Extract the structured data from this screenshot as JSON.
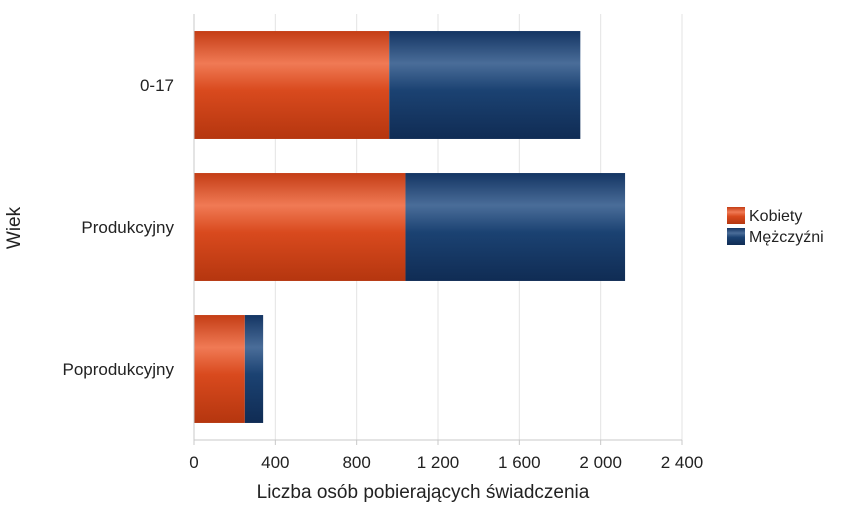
{
  "chart_data": {
    "type": "bar",
    "orientation": "horizontal",
    "stacked": true,
    "categories": [
      "0-17",
      "Produkcyjny",
      "Poprodukcyjny"
    ],
    "series": [
      {
        "name": "Kobiety",
        "values": [
          960,
          1040,
          250
        ],
        "color": "#d94a1e"
      },
      {
        "name": "Mężczyźni",
        "values": [
          940,
          1080,
          90
        ],
        "color": "#1b4272"
      }
    ],
    "xlabel": "Liczba osób pobierających świadczenia",
    "ylabel": "Wiek",
    "xlim": [
      0,
      2400
    ],
    "xticks": [
      0,
      400,
      800,
      1200,
      1600,
      2000,
      2400
    ],
    "xtick_labels": [
      "0",
      "400",
      "800",
      "1 200",
      "1 600",
      "2 000",
      "2 400"
    ],
    "grid": true,
    "legend_position": "right"
  }
}
